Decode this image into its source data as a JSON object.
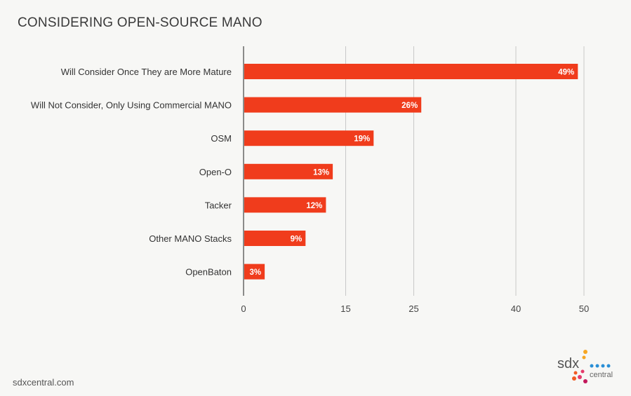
{
  "title": "CONSIDERING OPEN-SOURCE MANO",
  "footer": {
    "url": "sdxcentral.com"
  },
  "logo": {
    "text_main": "sdx",
    "text_sub": "central"
  },
  "colors": {
    "bar": "#f03c1c",
    "grid": "#c8c8c8",
    "axis": "#444444",
    "label_text": "#ffffff"
  },
  "chart_data": {
    "type": "bar",
    "orientation": "horizontal",
    "title": "CONSIDERING OPEN-SOURCE MANO",
    "xlabel": "",
    "ylabel": "",
    "categories": [
      "Will Consider Once They are More Mature",
      "Will Not Consider, Only Using Commercial MANO",
      "OSM",
      "Open-O",
      "Tacker",
      "Other MANO Stacks",
      "OpenBaton"
    ],
    "values": [
      49,
      26,
      19,
      13,
      12,
      9,
      3
    ],
    "value_labels": [
      "49%",
      "26%",
      "19%",
      "13%",
      "12%",
      "9%",
      "3%"
    ],
    "xticks": [
      "0",
      "15",
      "25",
      "40",
      "50"
    ],
    "grid": true
  }
}
